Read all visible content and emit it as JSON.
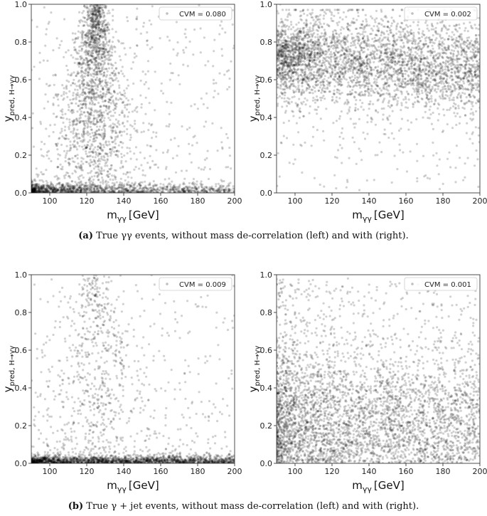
{
  "xlabel_main": "m",
  "xlabel_sub": "γγ",
  "xlabel_unit": "[GeV]",
  "ylabel_main": "y",
  "ylabel_sub": "pred, H→γγ",
  "xlim": [
    90,
    200
  ],
  "ylim": [
    0,
    1.0
  ],
  "xticks": [
    "100",
    "120",
    "140",
    "160",
    "180",
    "200"
  ],
  "yticks": [
    "0.0",
    "0.2",
    "0.4",
    "0.6",
    "0.8",
    "1.0"
  ],
  "captions": {
    "a_tag": "(a)",
    "a_text": "True γγ events, without mass de-correlation (left) and with (right).",
    "b_tag": "(b)",
    "b_text": "True γ + jet events, without mass de-correlation (left) and with (right)."
  },
  "chart_data": [
    {
      "type": "scatter",
      "id": "a-left",
      "legend": "CVM = 0.080",
      "distribution": "higgs-peak-ridge",
      "x_range": [
        90,
        200
      ],
      "y_range": [
        0,
        1
      ]
    },
    {
      "type": "scatter",
      "id": "a-right",
      "legend": "CVM = 0.002",
      "distribution": "flat-band-high",
      "x_range": [
        90,
        200
      ],
      "y_range": [
        0,
        1
      ]
    },
    {
      "type": "scatter",
      "id": "b-left",
      "legend": "CVM = 0.009",
      "distribution": "low-band-with-ridge",
      "x_range": [
        90,
        200
      ],
      "y_range": [
        0,
        1
      ]
    },
    {
      "type": "scatter",
      "id": "b-right",
      "legend": "CVM = 0.001",
      "distribution": "flat-band-low",
      "x_range": [
        90,
        200
      ],
      "y_range": [
        0,
        1
      ]
    }
  ]
}
